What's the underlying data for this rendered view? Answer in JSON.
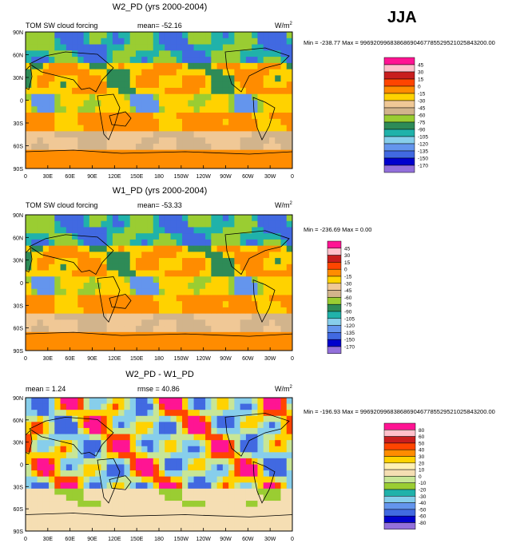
{
  "season": "JJA",
  "units_base": "W/m",
  "units_exp": "2",
  "lat_labels": [
    "90N",
    "60N",
    "30N",
    "0",
    "30S",
    "60S",
    "90S"
  ],
  "lon_labels": [
    "0",
    "30E",
    "60E",
    "90E",
    "120E",
    "150E",
    "180",
    "150W",
    "120W",
    "90W",
    "60W",
    "30W",
    "0"
  ],
  "chart_data": [
    {
      "type": "heatmap",
      "title": "W2_PD (yrs 2000-2004)",
      "left_text": "TOM SW cloud forcing",
      "center_text": "mean= -52.16",
      "minmax": "Min = -238.77 Max = 99692099683868690467785529521025843200.00",
      "legend_levels": [
        "45",
        "30",
        "15",
        "0",
        "-15",
        "-30",
        "-45",
        "-60",
        "-75",
        "-90",
        "-105",
        "-120",
        "-135",
        "-150",
        "-170"
      ],
      "legend_colors": [
        "#ff1493",
        "#ffc0cb",
        "#c81e1e",
        "#ff4500",
        "#ff8c00",
        "#ffd200",
        "#f0c896",
        "#d2b48c",
        "#9acd32",
        "#2e8b57",
        "#20b2aa",
        "#87ceeb",
        "#6495ed",
        "#4169e1",
        "#0000cd",
        "#9370db"
      ]
    },
    {
      "type": "heatmap",
      "title": "W1_PD (yrs 2000-2004)",
      "left_text": "TOM SW cloud forcing",
      "center_text": "mean= -53.33",
      "minmax": "Min = -236.69 Max =   0.00",
      "legend_levels": [
        "45",
        "30",
        "15",
        "0",
        "-15",
        "-30",
        "-45",
        "-60",
        "-75",
        "-90",
        "-105",
        "-120",
        "-135",
        "-150",
        "-170"
      ],
      "legend_colors": [
        "#ff1493",
        "#ffc0cb",
        "#c81e1e",
        "#ff4500",
        "#ff8c00",
        "#ffd200",
        "#f0c896",
        "#d2b48c",
        "#9acd32",
        "#2e8b57",
        "#20b2aa",
        "#87ceeb",
        "#6495ed",
        "#4169e1",
        "#0000cd",
        "#9370db"
      ]
    },
    {
      "type": "heatmap",
      "title": "W2_PD - W1_PD",
      "left_text": "mean =   1.24",
      "center_text": "rmse =  40.86",
      "minmax": "Min = -196.93 Max = 99692099683868690467785529521025843200.00",
      "legend_levels": [
        "80",
        "60",
        "50",
        "40",
        "30",
        "20",
        "10",
        "0",
        "-10",
        "-20",
        "-30",
        "-40",
        "-50",
        "-60",
        "-80"
      ],
      "legend_colors": [
        "#ff1493",
        "#ffc0cb",
        "#c81e1e",
        "#ff4500",
        "#ff8c00",
        "#ffd200",
        "#fff0b4",
        "#f5deb3",
        "#c8e696",
        "#9acd32",
        "#20b2aa",
        "#87ceeb",
        "#6495ed",
        "#4169e1",
        "#0000cd",
        "#9370db"
      ]
    }
  ]
}
